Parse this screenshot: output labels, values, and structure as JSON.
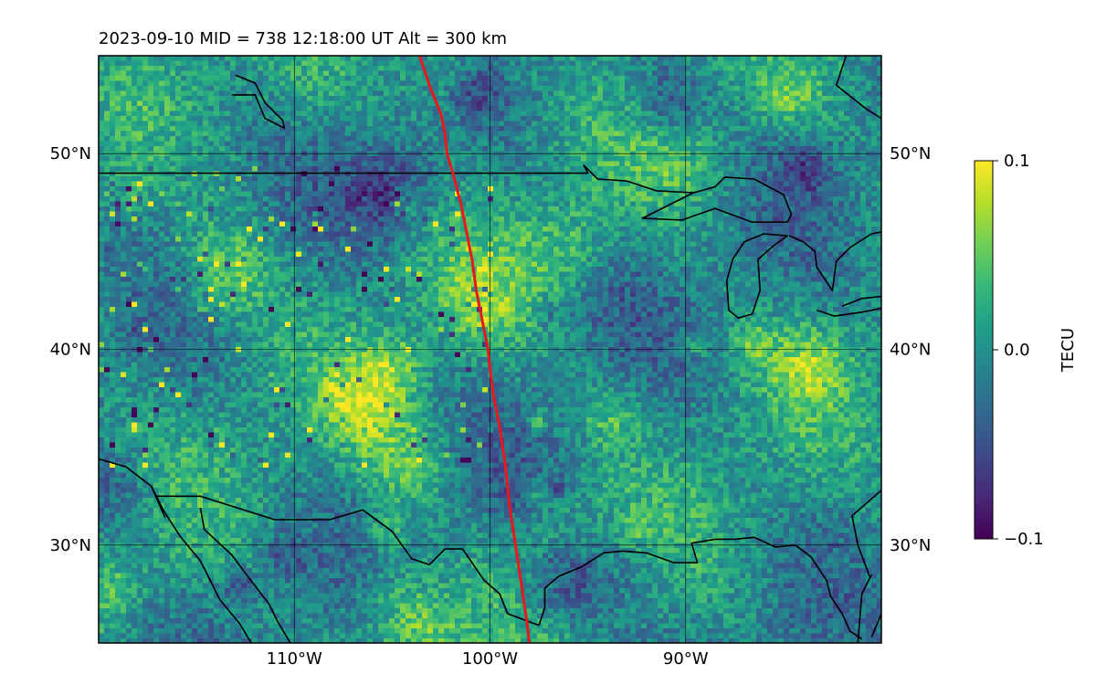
{
  "title": "2023-09-10  MID = 738    12:18:00  UT  Alt = 300 km",
  "map": {
    "extent": {
      "lon": [
        -120,
        -80
      ],
      "lat": [
        25,
        55
      ]
    },
    "lon_ticks": [
      {
        "value": -110,
        "label": "110°W"
      },
      {
        "value": -100,
        "label": "100°W"
      },
      {
        "value": -90,
        "label": "90°W"
      }
    ],
    "lat_ticks": [
      {
        "value": 30,
        "label": "30°N"
      },
      {
        "value": 40,
        "label": "40°N"
      },
      {
        "value": 50,
        "label": "50°N"
      }
    ],
    "grid": true,
    "track_color": "#e8191c",
    "coast_color": "#000000",
    "track": [
      [
        -103.6,
        55.0
      ],
      [
        -103.1,
        53.5
      ],
      [
        -102.5,
        52.0
      ],
      [
        -102.3,
        51.0
      ],
      [
        -102.2,
        50.0
      ],
      [
        -101.9,
        49.0
      ],
      [
        -101.5,
        47.5
      ],
      [
        -101.2,
        46.0
      ],
      [
        -100.9,
        44.5
      ],
      [
        -100.7,
        43.0
      ],
      [
        -100.4,
        41.5
      ],
      [
        -100.1,
        40.0
      ],
      [
        -100.0,
        39.0
      ],
      [
        -99.8,
        37.5
      ],
      [
        -99.5,
        36.0
      ],
      [
        -99.2,
        34.0
      ],
      [
        -99.0,
        32.0
      ],
      [
        -98.7,
        30.0
      ],
      [
        -98.4,
        28.0
      ],
      [
        -98.1,
        26.0
      ],
      [
        -98.0,
        25.0
      ]
    ],
    "coastlines": [
      [
        [
          -120,
          49.0
        ],
        [
          -115,
          49.0
        ],
        [
          -110,
          49.0
        ],
        [
          -105,
          49.0
        ],
        [
          -100,
          49.0
        ],
        [
          -95,
          49.0
        ],
        [
          -95.2,
          49.4
        ],
        [
          -94.5,
          48.7
        ],
        [
          -93.0,
          48.6
        ],
        [
          -91.5,
          48.1
        ],
        [
          -89.6,
          48.0
        ]
      ],
      [
        [
          -89.6,
          48.0
        ],
        [
          -88.5,
          48.3
        ],
        [
          -88.0,
          48.8
        ],
        [
          -86.5,
          48.7
        ],
        [
          -85.0,
          47.9
        ],
        [
          -84.6,
          46.9
        ],
        [
          -84.8,
          46.5
        ],
        [
          -86.6,
          46.5
        ],
        [
          -88.5,
          47.2
        ],
        [
          -90.2,
          46.6
        ],
        [
          -92.2,
          46.7
        ],
        [
          -89.6,
          48.0
        ]
      ],
      [
        [
          -87.8,
          42.0
        ],
        [
          -87.3,
          41.6
        ],
        [
          -86.6,
          41.8
        ],
        [
          -86.2,
          43.0
        ],
        [
          -86.3,
          44.6
        ],
        [
          -85.5,
          45.3
        ],
        [
          -84.8,
          45.8
        ],
        [
          -86.0,
          45.9
        ],
        [
          -87.0,
          45.5
        ],
        [
          -87.6,
          44.6
        ],
        [
          -87.9,
          43.5
        ],
        [
          -87.8,
          42.0
        ]
      ],
      [
        [
          -84.7,
          45.8
        ],
        [
          -84.0,
          45.5
        ],
        [
          -83.4,
          45.0
        ],
        [
          -83.3,
          44.2
        ],
        [
          -82.5,
          43.0
        ],
        [
          -82.3,
          44.5
        ],
        [
          -81.6,
          45.2
        ],
        [
          -80.5,
          45.9
        ],
        [
          -80,
          46.0
        ]
      ],
      [
        [
          -83.3,
          42.0
        ],
        [
          -82.4,
          41.7
        ],
        [
          -81.0,
          41.9
        ],
        [
          -80,
          42.1
        ]
      ],
      [
        [
          -80,
          42.7
        ],
        [
          -81.0,
          42.6
        ],
        [
          -82.0,
          42.2
        ]
      ],
      [
        [
          -113.0,
          54.0
        ],
        [
          -112.0,
          53.6
        ],
        [
          -111.5,
          52.6
        ],
        [
          -110.6,
          51.7
        ],
        [
          -110.5,
          51.3
        ],
        [
          -111.5,
          51.8
        ],
        [
          -112.0,
          53.0
        ],
        [
          -113.2,
          53.0
        ]
      ],
      [
        [
          -120,
          34.4
        ],
        [
          -118.6,
          34.0
        ],
        [
          -117.3,
          33.0
        ],
        [
          -116.7,
          31.8
        ],
        [
          -115.8,
          30.4
        ],
        [
          -114.8,
          29.2
        ],
        [
          -114.3,
          28.2
        ],
        [
          -113.8,
          27.2
        ],
        [
          -112.8,
          26.0
        ],
        [
          -112.2,
          25.0
        ]
      ],
      [
        [
          -114.8,
          31.9
        ],
        [
          -114.6,
          30.8
        ],
        [
          -113.2,
          29.5
        ],
        [
          -112.3,
          28.3
        ],
        [
          -111.3,
          27.0
        ],
        [
          -110.8,
          26.0
        ],
        [
          -110.2,
          25.0
        ]
      ],
      [
        [
          -117.1,
          32.5
        ],
        [
          -114.8,
          32.5
        ],
        [
          -111.0,
          31.3
        ],
        [
          -108.2,
          31.3
        ],
        [
          -106.5,
          31.8
        ],
        [
          -105.0,
          30.7
        ],
        [
          -104.0,
          29.3
        ],
        [
          -103.1,
          29.0
        ],
        [
          -102.3,
          29.8
        ],
        [
          -101.4,
          29.8
        ],
        [
          -100.3,
          28.2
        ],
        [
          -99.5,
          27.5
        ],
        [
          -99.1,
          26.5
        ],
        [
          -97.5,
          25.9
        ]
      ],
      [
        [
          -97.5,
          25.9
        ],
        [
          -97.2,
          26.8
        ],
        [
          -97.2,
          27.8
        ],
        [
          -96.5,
          28.4
        ],
        [
          -95.3,
          28.9
        ],
        [
          -94.2,
          29.6
        ],
        [
          -93.2,
          29.7
        ],
        [
          -92.0,
          29.6
        ],
        [
          -90.6,
          29.1
        ],
        [
          -89.4,
          29.1
        ],
        [
          -89.7,
          30.1
        ],
        [
          -88.5,
          30.3
        ],
        [
          -87.5,
          30.3
        ],
        [
          -86.5,
          30.4
        ],
        [
          -85.4,
          29.9
        ],
        [
          -84.4,
          30.0
        ],
        [
          -83.6,
          29.4
        ],
        [
          -82.8,
          28.2
        ],
        [
          -82.6,
          27.4
        ],
        [
          -82.0,
          26.5
        ],
        [
          -81.6,
          25.6
        ],
        [
          -81.0,
          25.2
        ]
      ],
      [
        [
          -80,
          26.5
        ],
        [
          -80.5,
          25.3
        ]
      ],
      [
        [
          -81.2,
          25.0
        ],
        [
          -81.0,
          27.5
        ],
        [
          -80.5,
          28.5
        ]
      ],
      [
        [
          -80,
          32.8
        ],
        [
          -81.5,
          31.5
        ],
        [
          -81.2,
          30.0
        ],
        [
          -80.6,
          28.4
        ]
      ],
      [
        [
          -117.3,
          33.0
        ],
        [
          -117.0,
          32.3
        ],
        [
          -116.6,
          31.4
        ]
      ],
      [
        [
          -81.8,
          55.0
        ],
        [
          -82.3,
          53.5
        ],
        [
          -80.8,
          52.3
        ],
        [
          -80,
          51.8
        ]
      ]
    ]
  },
  "colorbar": {
    "label": "TECU",
    "min": -0.1,
    "max": 0.1,
    "ticks": [
      {
        "value": 0.1,
        "label": "0.1"
      },
      {
        "value": 0.0,
        "label": "0.0"
      },
      {
        "value": -0.1,
        "label": "−0.1"
      }
    ],
    "colormap": "viridis",
    "colormap_stops": [
      "#440154",
      "#482878",
      "#3e4989",
      "#31688e",
      "#26828e",
      "#1f9e89",
      "#35b779",
      "#6ece58",
      "#b5de2b",
      "#fde725"
    ]
  }
}
